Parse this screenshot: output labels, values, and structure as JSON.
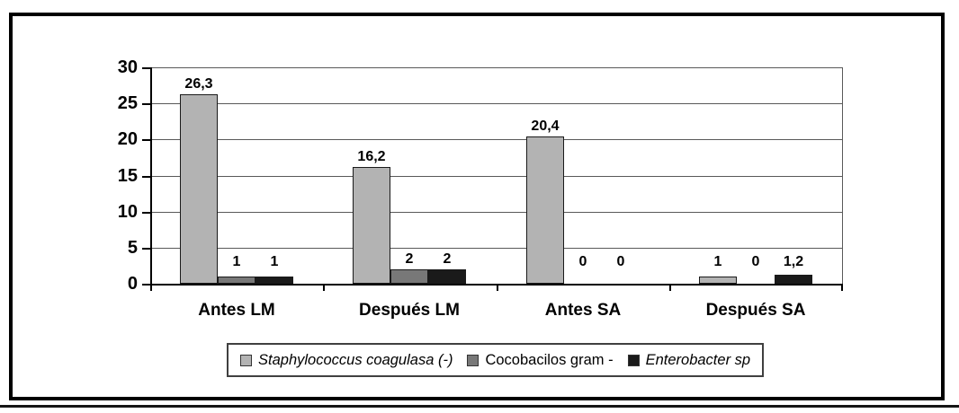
{
  "figure": {
    "frame_color": "#000000",
    "bottom_rule_color": "#141414",
    "background": "#ffffff"
  },
  "chart_data": {
    "type": "bar",
    "title": "",
    "xlabel": "",
    "ylabel": "",
    "categories": [
      "Antes LM",
      "Después LM",
      "Antes SA",
      "Después SA"
    ],
    "series": [
      {
        "name": "Staphylococcus coagulasa (-)",
        "italic": true,
        "color": "#b3b3b3",
        "values": [
          26.3,
          16.2,
          20.4,
          1
        ],
        "labels": [
          "26,3",
          "16,2",
          "20,4",
          "1"
        ]
      },
      {
        "name": "Cocobacilos gram -",
        "italic": false,
        "color": "#787878",
        "values": [
          1,
          2,
          0,
          0
        ],
        "labels": [
          "1",
          "2",
          "0",
          "0"
        ]
      },
      {
        "name": "Enterobacter sp",
        "italic": true,
        "color": "#1a1a1a",
        "values": [
          1,
          2,
          0,
          1.2
        ],
        "labels": [
          "1",
          "2",
          "0",
          "1,2"
        ]
      }
    ],
    "y_ticks": [
      0,
      5,
      10,
      15,
      20,
      25,
      30
    ],
    "ylim": [
      0,
      30
    ],
    "grid": true,
    "legend_position": "bottom"
  }
}
